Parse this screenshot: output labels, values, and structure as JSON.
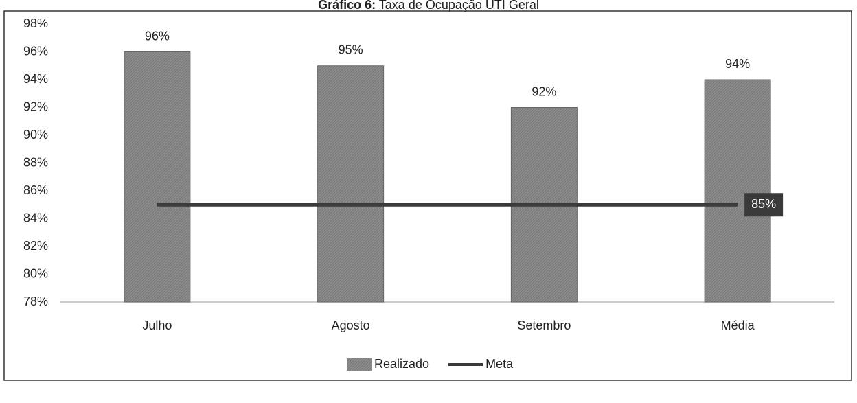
{
  "chart_data": {
    "type": "bar",
    "title_label": "Gráfico 6:",
    "title": "Taxa de Ocupação UTI Geral",
    "categories": [
      "Julho",
      "Agosto",
      "Setembro",
      "Média"
    ],
    "series": [
      {
        "name": "Realizado",
        "type": "bar",
        "color": "#8c8c8c",
        "values": [
          96,
          95,
          92,
          94
        ],
        "value_labels": [
          "96%",
          "95%",
          "92%",
          "94%"
        ]
      },
      {
        "name": "Meta",
        "type": "line",
        "color": "#3a3a3a",
        "values": [
          85,
          85,
          85,
          85
        ],
        "end_label": "85%"
      }
    ],
    "ylim": [
      78,
      98
    ],
    "yticks": [
      {
        "value": 78,
        "label": "78%"
      },
      {
        "value": 80,
        "label": "80%"
      },
      {
        "value": 82,
        "label": "82%"
      },
      {
        "value": 84,
        "label": "84%"
      },
      {
        "value": 86,
        "label": "86%"
      },
      {
        "value": 88,
        "label": "88%"
      },
      {
        "value": 90,
        "label": "90%"
      },
      {
        "value": 92,
        "label": "92%"
      },
      {
        "value": 94,
        "label": "94%"
      },
      {
        "value": 96,
        "label": "96%"
      },
      {
        "value": 98,
        "label": "98%"
      }
    ],
    "grid": false,
    "legend": "bottom"
  }
}
